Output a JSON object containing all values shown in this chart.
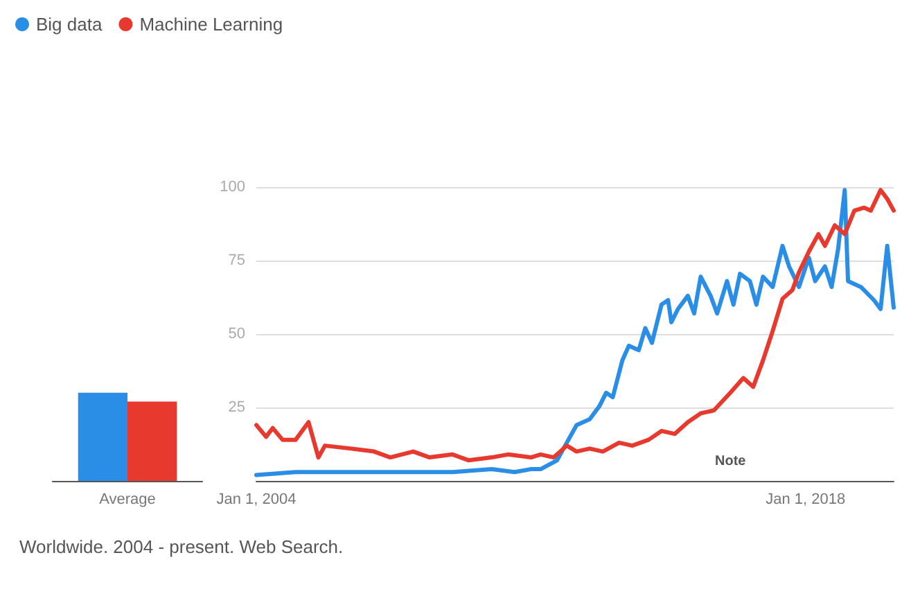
{
  "chart_data": [
    {
      "type": "bar",
      "categories": [
        "Average"
      ],
      "ylim": [
        0,
        100
      ],
      "tick_labels": "x",
      "grid": false,
      "legend": false,
      "series": [
        {
          "color": "#2a8de6",
          "values": [
            30
          ]
        },
        {
          "color": "#e8392e",
          "values": [
            27
          ]
        }
      ]
    },
    {
      "type": "line",
      "xlim": [
        "2004-01-01",
        "2020-04-01"
      ],
      "ylim": [
        0,
        100
      ],
      "xticks": [
        {
          "value": "2004-01-01",
          "label": "Jan 1, 2004"
        },
        {
          "value": "2018-01-01",
          "label": "Jan 1, 2018"
        }
      ],
      "yticks": [
        25,
        50,
        75,
        100
      ],
      "grid": "y",
      "legend": "top left",
      "marker": "none",
      "line_style": "solid",
      "annotations": [
        "Note",
        "Worldwide. 2004 - present. Web Search."
      ],
      "series": [
        {
          "name": "Big data",
          "color": "#2a8de6",
          "x": [
            "2004-01",
            "2005-01",
            "2006-01",
            "2007-01",
            "2008-01",
            "2009-01",
            "2010-01",
            "2010-08",
            "2011-01",
            "2011-04",
            "2011-09",
            "2011-12",
            "2012-03",
            "2012-07",
            "2012-10",
            "2012-12",
            "2013-02",
            "2013-05",
            "2013-07",
            "2013-10",
            "2013-12",
            "2014-02",
            "2014-05",
            "2014-07",
            "2014-08",
            "2014-10",
            "2015-01",
            "2015-03",
            "2015-05",
            "2015-08",
            "2015-10",
            "2016-01",
            "2016-03",
            "2016-05",
            "2016-08",
            "2016-10",
            "2016-12",
            "2017-03",
            "2017-06",
            "2017-08",
            "2017-11",
            "2018-02",
            "2018-04",
            "2018-07",
            "2018-09",
            "2018-11",
            "2019-01",
            "2019-02",
            "2019-06",
            "2019-10",
            "2019-12",
            "2020-02",
            "2020-04"
          ],
          "values": [
            2,
            3,
            3,
            3,
            3,
            3,
            4,
            3,
            4,
            4,
            7,
            13,
            19,
            21,
            25.5,
            30,
            28.5,
            41,
            46,
            44.5,
            52,
            47,
            60,
            61.5,
            54,
            58.5,
            63,
            57,
            69.5,
            63,
            57,
            68,
            60,
            70.5,
            68,
            60,
            69.5,
            66,
            80,
            73,
            66,
            76,
            68,
            73,
            66,
            79,
            99,
            68,
            66,
            61.5,
            58.5,
            80,
            59
          ]
        },
        {
          "name": "Machine Learning",
          "color": "#e8392e",
          "x": [
            "2004-01",
            "2004-04",
            "2004-06",
            "2004-09",
            "2005-01",
            "2005-05",
            "2005-08",
            "2005-10",
            "2006-06",
            "2007-01",
            "2007-06",
            "2008-01",
            "2008-06",
            "2009-01",
            "2009-06",
            "2010-01",
            "2010-06",
            "2011-01",
            "2011-04",
            "2011-08",
            "2011-12",
            "2012-03",
            "2012-07",
            "2012-11",
            "2013-04",
            "2013-08",
            "2014-01",
            "2014-05",
            "2014-09",
            "2015-01",
            "2015-05",
            "2015-09",
            "2016-02",
            "2016-06",
            "2016-09",
            "2016-12",
            "2017-03",
            "2017-06",
            "2017-09",
            "2017-11",
            "2018-02",
            "2018-05",
            "2018-07",
            "2018-10",
            "2019-01",
            "2019-04",
            "2019-07",
            "2019-09",
            "2019-12",
            "2020-02",
            "2020-04"
          ],
          "values": [
            19,
            15,
            18,
            14,
            14,
            20,
            8,
            12,
            11,
            10,
            8,
            10,
            8,
            9,
            7,
            8,
            9,
            8,
            9,
            8,
            12,
            10,
            11,
            10,
            13,
            12,
            14,
            17,
            16,
            20,
            23,
            24,
            30,
            35,
            32,
            41,
            51,
            62,
            65,
            71,
            78,
            84,
            80,
            87,
            84,
            92,
            93,
            92,
            99,
            96,
            92
          ]
        }
      ]
    }
  ]
}
